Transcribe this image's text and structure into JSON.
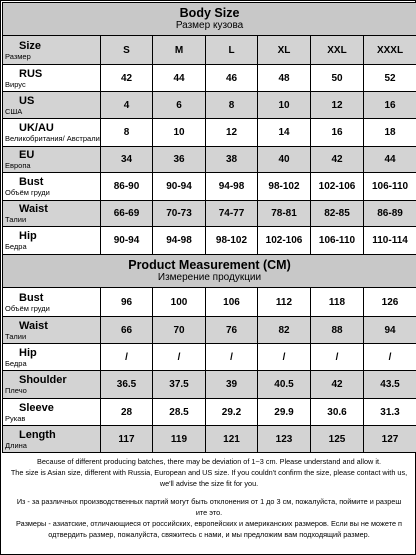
{
  "body_size": {
    "title": "Body Size",
    "subtitle": "Размер кузова",
    "header": {
      "label": "Size",
      "sublabel": "Размер",
      "sizes": [
        "S",
        "M",
        "L",
        "XL",
        "XXL",
        "XXXL"
      ]
    },
    "rows": [
      {
        "label": "RUS",
        "sublabel": "Вирус",
        "values": [
          "42",
          "44",
          "46",
          "48",
          "50",
          "52"
        ]
      },
      {
        "label": "US",
        "sublabel": "США",
        "values": [
          "4",
          "6",
          "8",
          "10",
          "12",
          "16"
        ]
      },
      {
        "label": "UK/AU",
        "sublabel": "Великобритания/ Австралия",
        "values": [
          "8",
          "10",
          "12",
          "14",
          "16",
          "18"
        ]
      },
      {
        "label": "EU",
        "sublabel": "Европа",
        "values": [
          "34",
          "36",
          "38",
          "40",
          "42",
          "44"
        ]
      },
      {
        "label": "Bust",
        "sublabel": "Объём груди",
        "values": [
          "86-90",
          "90-94",
          "94-98",
          "98-102",
          "102-106",
          "106-110"
        ]
      },
      {
        "label": "Waist",
        "sublabel": "Талии",
        "values": [
          "66-69",
          "70-73",
          "74-77",
          "78-81",
          "82-85",
          "86-89"
        ]
      },
      {
        "label": "Hip",
        "sublabel": "Бедра",
        "values": [
          "90-94",
          "94-98",
          "98-102",
          "102-106",
          "106-110",
          "110-114"
        ]
      }
    ]
  },
  "product_measurement": {
    "title": "Product Measurement (CM)",
    "subtitle": "Измерение продукции",
    "rows": [
      {
        "label": "Bust",
        "sublabel": "Объём груди",
        "values": [
          "96",
          "100",
          "106",
          "112",
          "118",
          "126"
        ]
      },
      {
        "label": "Waist",
        "sublabel": "Талии",
        "values": [
          "66",
          "70",
          "76",
          "82",
          "88",
          "94"
        ]
      },
      {
        "label": "Hip",
        "sublabel": "Бедра",
        "values": [
          "/",
          "/",
          "/",
          "/",
          "/",
          "/"
        ]
      },
      {
        "label": "Shoulder",
        "sublabel": "Плечо",
        "values": [
          "36.5",
          "37.5",
          "39",
          "40.5",
          "42",
          "43.5"
        ]
      },
      {
        "label": "Sleeve",
        "sublabel": "Рукав",
        "values": [
          "28",
          "28.5",
          "29.2",
          "29.9",
          "30.6",
          "31.3"
        ]
      },
      {
        "label": "Length",
        "sublabel": "Длина",
        "values": [
          "117",
          "119",
          "121",
          "123",
          "125",
          "127"
        ]
      }
    ]
  },
  "notes": {
    "en_line1": "Because of different producing batches, there may be deviation of 1~3 cm. Please understand and allow it.",
    "en_line2": "The size is Asian size, different with Russia, European and US size. If you couldn't confirm the size, please contact with us,",
    "en_line3": "we'll advise the size fit for you.",
    "ru_line1": "Из - за различных производственных партий могут быть отклонения от 1 до 3 см, пожалуйста, поймите и разреш",
    "ru_line2": "ите это.",
    "ru_line3": "Размеры - азиатские, отличающиеся от российских, европейских и американских размеров. Если вы не можете п",
    "ru_line4": "одтвердить размер, пожалуйста, свяжитесь с нами, и мы предложим вам подходящий размер."
  }
}
